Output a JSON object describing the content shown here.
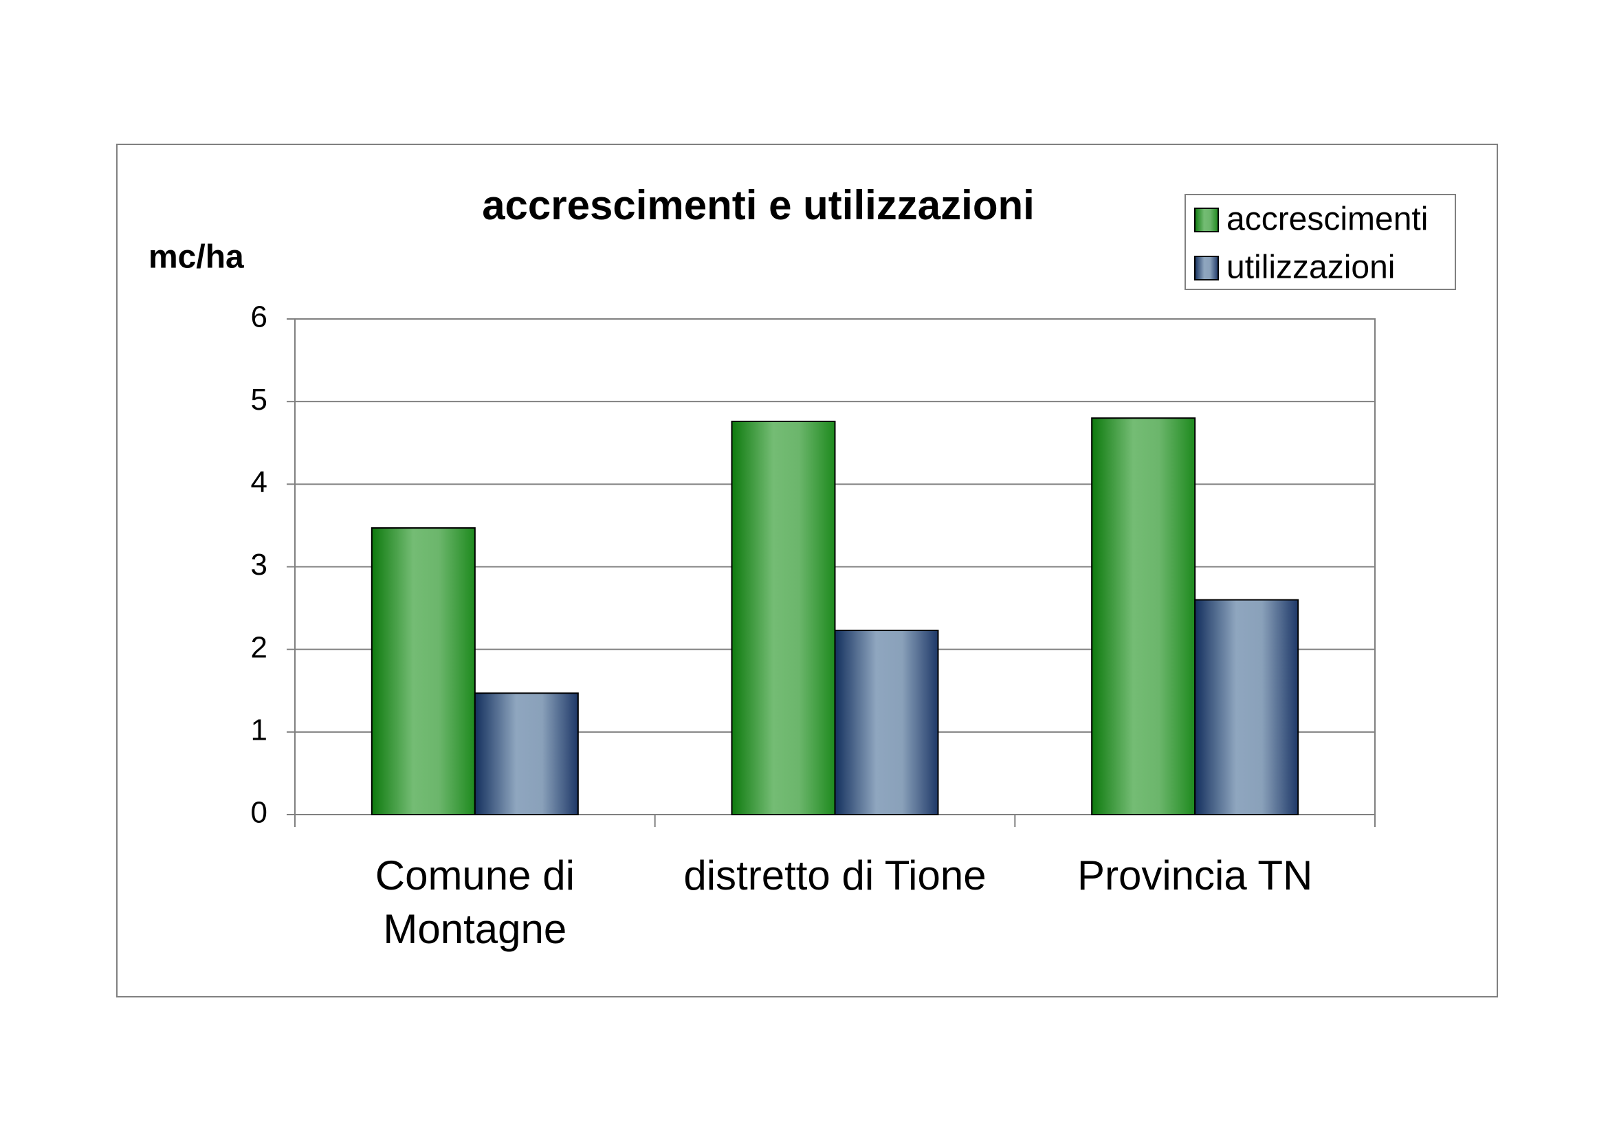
{
  "chart_data": {
    "type": "bar",
    "title": "accrescimenti e utilizzazioni",
    "y_label": "mc/ha",
    "categories": [
      "Comune di Montagne",
      "distretto di Tione",
      "Provincia TN"
    ],
    "series": [
      {
        "name": "accrescimenti",
        "color": "#2e9a2e",
        "values": [
          3.47,
          4.76,
          4.8
        ]
      },
      {
        "name": "utilizzazioni",
        "color": "#5a7298",
        "values": [
          1.47,
          2.23,
          2.6
        ]
      }
    ],
    "ylim": [
      0,
      6
    ],
    "yticks": [
      0,
      1,
      2,
      3,
      4,
      5,
      6
    ],
    "grid": true,
    "legend": "top-right"
  }
}
